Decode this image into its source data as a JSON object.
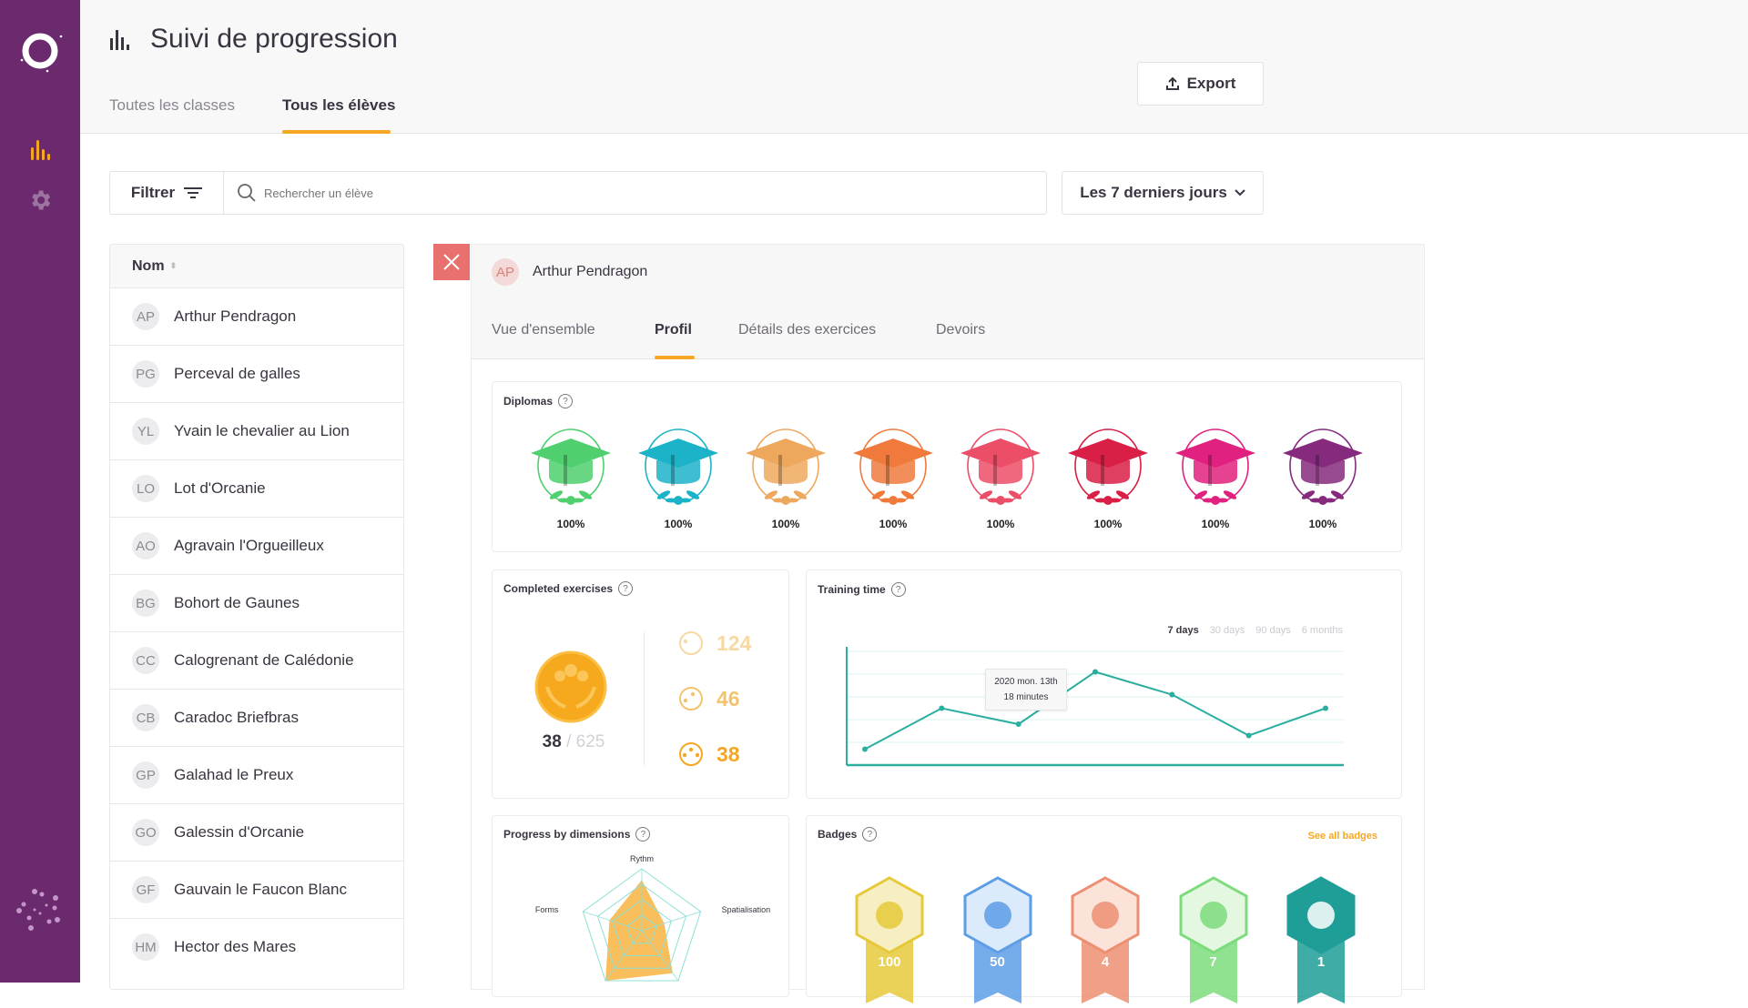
{
  "app": {
    "title": "Suivi de progression",
    "accent": "#f5a623",
    "sidebar_color": "#6c2a6e"
  },
  "sidebar": {
    "items": [
      {
        "icon": "bar-chart-icon",
        "active": true
      },
      {
        "icon": "gear-icon",
        "active": false
      }
    ]
  },
  "header": {
    "tabs": [
      {
        "label": "Toutes les classes",
        "active": false
      },
      {
        "label": "Tous les élèves",
        "active": true
      }
    ],
    "export_label": "Export"
  },
  "filters": {
    "filter_label": "Filtrer",
    "search_placeholder": "Rechercher un élève",
    "period": "Les 7 derniers jours"
  },
  "students": {
    "column_header": "Nom",
    "items": [
      {
        "initials": "AP",
        "name": "Arthur Pendragon"
      },
      {
        "initials": "PG",
        "name": "Perceval de galles"
      },
      {
        "initials": "YL",
        "name": "Yvain le chevalier au Lion"
      },
      {
        "initials": "LO",
        "name": "Lot d'Orcanie"
      },
      {
        "initials": "AO",
        "name": "Agravain l'Orgueilleux"
      },
      {
        "initials": "BG",
        "name": "Bohort de Gaunes"
      },
      {
        "initials": "CC",
        "name": "Calogrenant de Calédonie"
      },
      {
        "initials": "CB",
        "name": "Caradoc Briefbras"
      },
      {
        "initials": "GP",
        "name": "Galahad le Preux"
      },
      {
        "initials": "GO",
        "name": "Galessin d'Orcanie"
      },
      {
        "initials": "GF",
        "name": "Gauvain le Faucon Blanc"
      },
      {
        "initials": "HM",
        "name": "Hector des Mares"
      }
    ]
  },
  "detail": {
    "student": {
      "initials": "AP",
      "name": "Arthur Pendragon"
    },
    "tabs": [
      {
        "label": "Vue d'ensemble",
        "active": false
      },
      {
        "label": "Profil",
        "active": true
      },
      {
        "label": "Détails des exercices",
        "active": false
      },
      {
        "label": "Devoirs",
        "active": false
      }
    ],
    "diplomas": {
      "title": "Diplomas",
      "items": [
        {
          "color": "#4fcf6e",
          "value": "100%"
        },
        {
          "color": "#1cb3c8",
          "value": "100%"
        },
        {
          "color": "#eea85e",
          "value": "100%"
        },
        {
          "color": "#f07a3c",
          "value": "100%"
        },
        {
          "color": "#ec4d67",
          "value": "100%"
        },
        {
          "color": "#d91f45",
          "value": "100%"
        },
        {
          "color": "#e0217f",
          "value": "100%"
        },
        {
          "color": "#862a7e",
          "value": "100%"
        }
      ]
    },
    "completed": {
      "title": "Completed exercises",
      "done": "38",
      "total": "/ 625",
      "levels": [
        {
          "value": "124",
          "color": "#f6d9a3",
          "dots": 1
        },
        {
          "value": "46",
          "color": "#f2c46f",
          "dots": 2
        },
        {
          "value": "38",
          "color": "#f5a623",
          "dots": 3
        }
      ]
    },
    "training": {
      "title": "Training time",
      "ranges": [
        {
          "label": "7 days",
          "active": true
        },
        {
          "label": "30 days",
          "active": false
        },
        {
          "label": "90 days",
          "active": false
        },
        {
          "label": "6 months",
          "active": false
        }
      ],
      "tooltip": {
        "date": "2020 mon. 13th",
        "value": "18 minutes"
      }
    },
    "dimensions": {
      "title": "Progress by dimensions"
    },
    "badges": {
      "title": "Badges",
      "see_all": "See all badges",
      "items": [
        {
          "value": "100",
          "color": "#e6c93a",
          "light": "#f7efc2"
        },
        {
          "value": "50",
          "color": "#5d9ee6",
          "light": "#dcebfb"
        },
        {
          "value": "4",
          "color": "#ec8f72",
          "light": "#fbe3da"
        },
        {
          "value": "7",
          "color": "#7cdc7c",
          "light": "#e3f7e1"
        },
        {
          "value": "1",
          "color": "#1f9d97",
          "light": "#1f9d97"
        }
      ]
    }
  },
  "chart_data": [
    {
      "type": "line",
      "title": "Training time",
      "unit": "minutes",
      "values": [
        7,
        25,
        18,
        41,
        31,
        13,
        25
      ],
      "ylim": [
        0,
        52
      ],
      "grid": true,
      "color": "#2aaea0"
    },
    {
      "type": "radar",
      "title": "Progress by dimensions",
      "axes": [
        "Rythm",
        "Spatialisation",
        "",
        "",
        "Forms"
      ],
      "values": [
        0.82,
        0.38,
        0.85,
        1.0,
        0.55
      ],
      "range": [
        0,
        1
      ],
      "fill": "#f7b84a",
      "grid_color": "#8ee0d6"
    }
  ]
}
